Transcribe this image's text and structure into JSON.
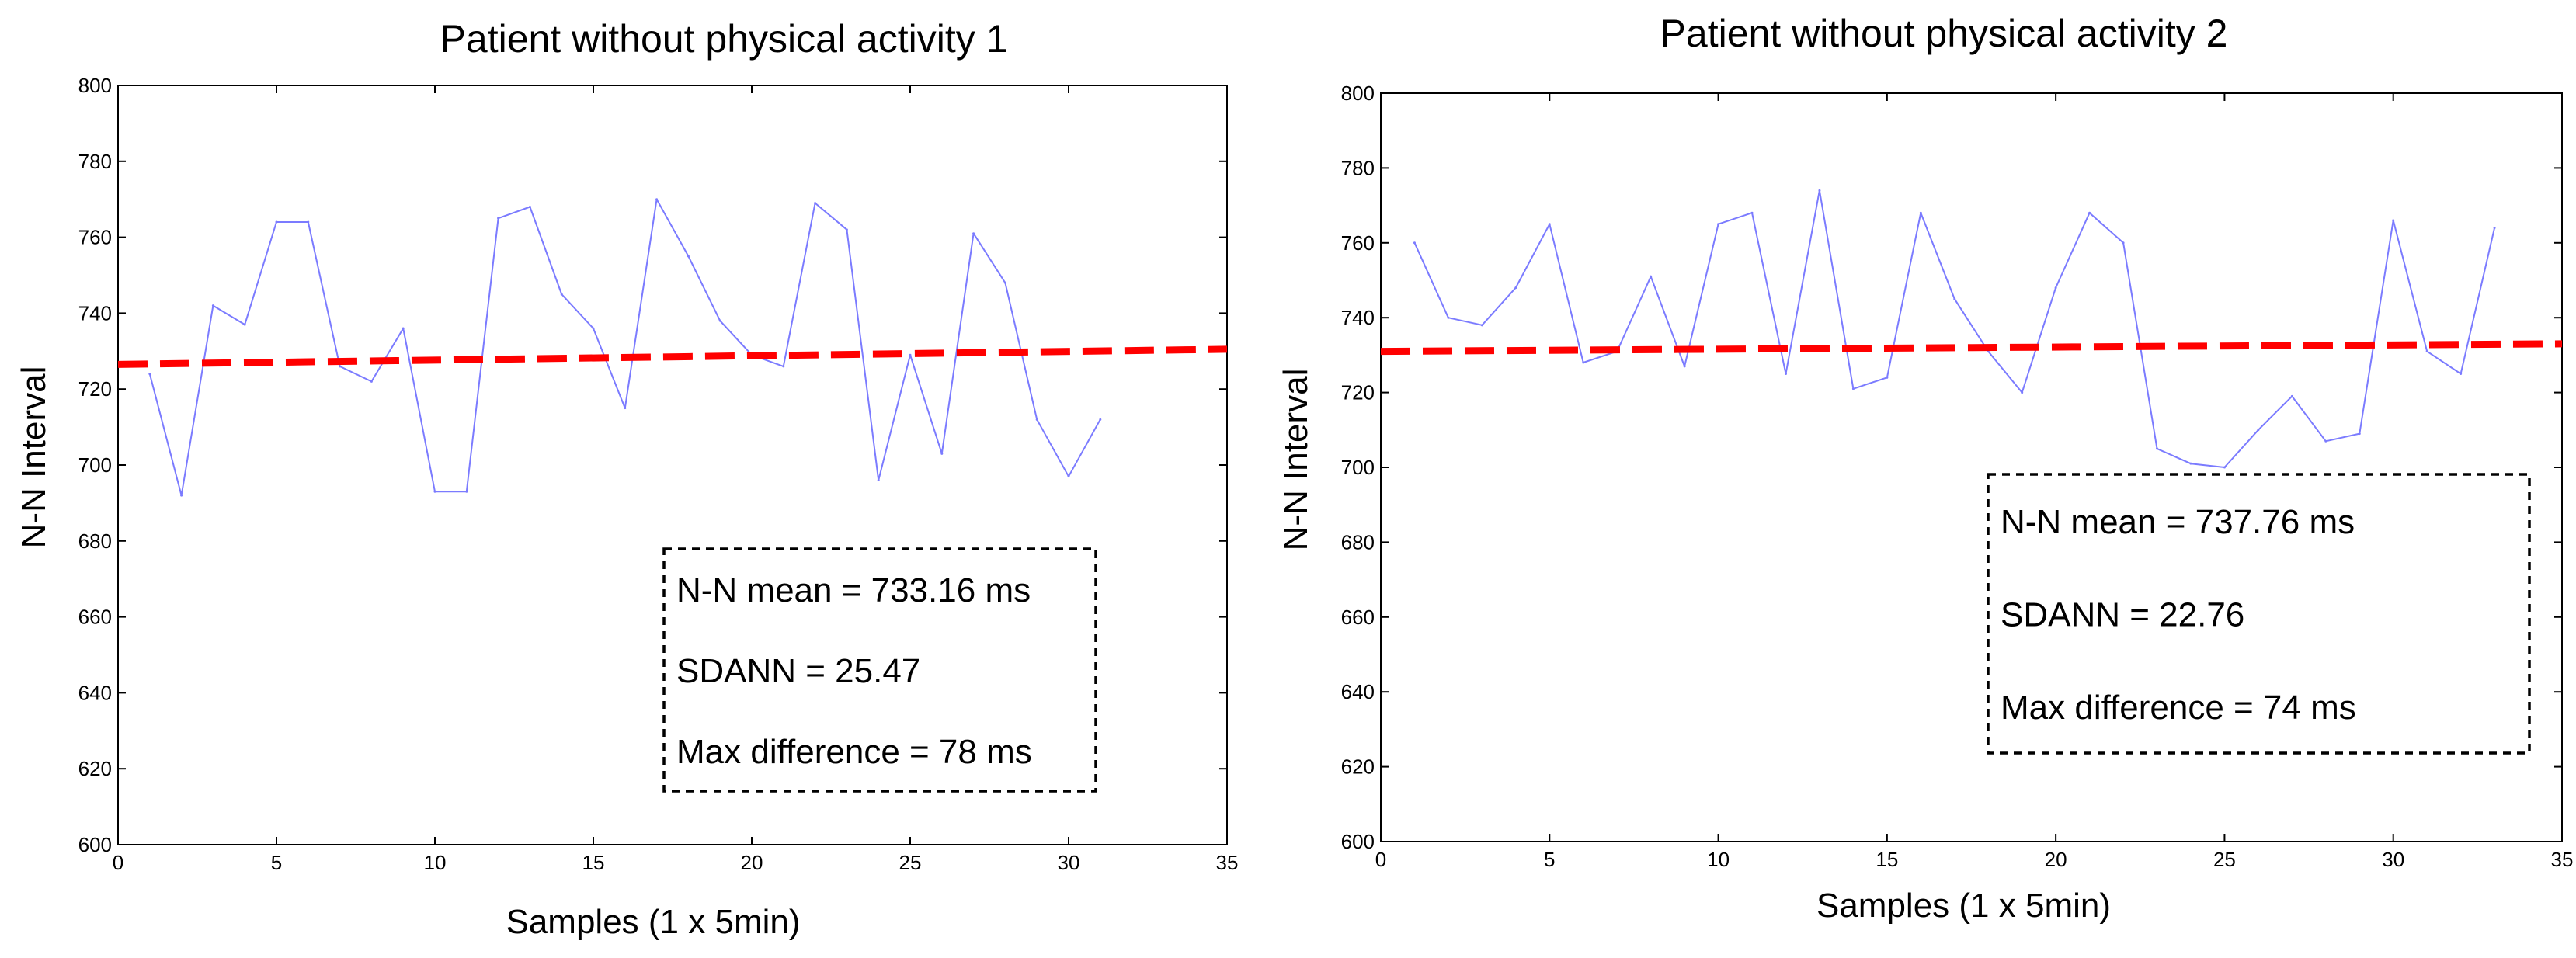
{
  "chart_data": [
    {
      "type": "line",
      "title": "Patient without physical activity 1",
      "xlabel": "Samples (1 x 5min)",
      "ylabel": "N-N Interval",
      "xlim": [
        0,
        35
      ],
      "ylim": [
        600,
        800
      ],
      "xticks": [
        0,
        5,
        10,
        15,
        20,
        25,
        30,
        35
      ],
      "yticks": [
        600,
        620,
        640,
        660,
        680,
        700,
        720,
        740,
        760,
        780,
        800
      ],
      "series": [
        {
          "name": "N-N interval",
          "color": "#7b7bff",
          "x": [
            1,
            2,
            3,
            4,
            5,
            6,
            7,
            8,
            9,
            10,
            11,
            12,
            13,
            14,
            15,
            16,
            17,
            18,
            19,
            20,
            21,
            22,
            23,
            24,
            25,
            26,
            27,
            28,
            29,
            30,
            31
          ],
          "values": [
            724,
            692,
            742,
            737,
            764,
            764,
            726,
            722,
            736,
            693,
            693,
            765,
            768,
            745,
            736,
            715,
            770,
            755,
            738,
            729,
            726,
            769,
            762,
            696,
            729,
            703,
            761,
            748,
            712,
            697,
            712
          ]
        },
        {
          "name": "trend",
          "color": "#ff0000",
          "style": "dashed",
          "x": [
            0,
            35
          ],
          "values": [
            726.5,
            730.5
          ]
        }
      ],
      "stats": [
        "N-N mean = 733.16 ms",
        "SDANN = 25.47",
        "Max difference = 78 ms"
      ]
    },
    {
      "type": "line",
      "title": "Patient without physical activity 2",
      "xlabel": "Samples (1 x 5min)",
      "ylabel": "N-N Interval",
      "xlim": [
        0,
        35
      ],
      "ylim": [
        600,
        800
      ],
      "xticks": [
        0,
        5,
        10,
        15,
        20,
        25,
        30,
        35
      ],
      "yticks": [
        600,
        620,
        640,
        660,
        680,
        700,
        720,
        740,
        760,
        780,
        800
      ],
      "series": [
        {
          "name": "N-N interval",
          "color": "#7b7bff",
          "x": [
            1,
            2,
            3,
            4,
            5,
            6,
            7,
            8,
            9,
            10,
            11,
            12,
            13,
            14,
            15,
            16,
            17,
            18,
            19,
            20,
            21,
            22,
            23,
            24,
            25,
            26,
            27,
            28,
            29,
            30,
            31,
            32,
            33
          ],
          "values": [
            760,
            740,
            738,
            748,
            765,
            728,
            731,
            751,
            727,
            765,
            768,
            725,
            774,
            721,
            724,
            768,
            745,
            731,
            720,
            748,
            768,
            760,
            705,
            701,
            700,
            710,
            719,
            707,
            709,
            766,
            731,
            725,
            764
          ]
        },
        {
          "name": "trend",
          "color": "#ff0000",
          "style": "dashed",
          "x": [
            0,
            35
          ],
          "values": [
            731,
            733
          ]
        }
      ],
      "stats": [
        "N-N mean = 737.76 ms",
        "SDANN = 22.76",
        "Max difference = 74 ms"
      ]
    }
  ]
}
